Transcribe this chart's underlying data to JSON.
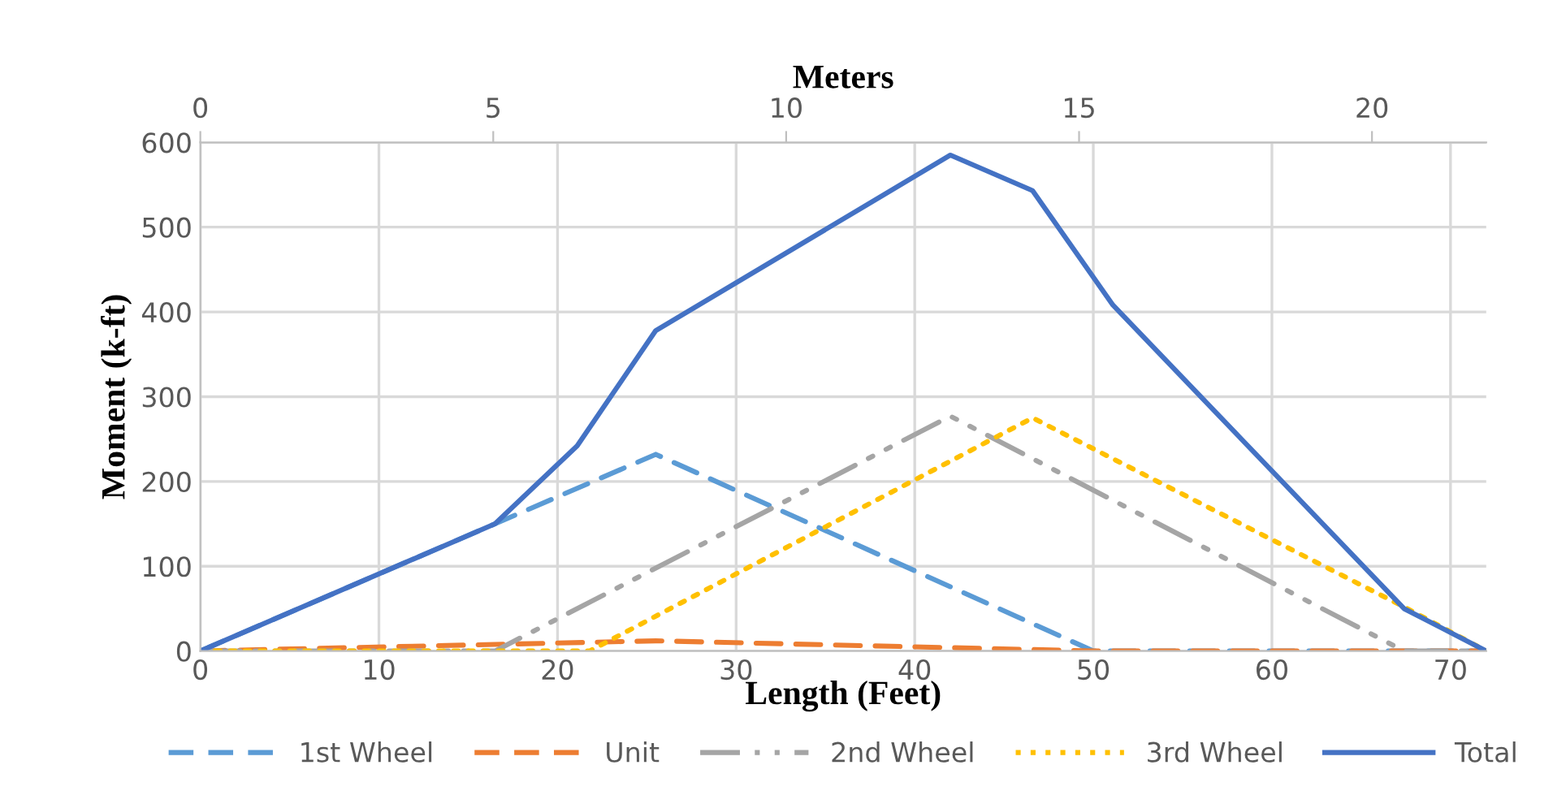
{
  "chart_data": {
    "type": "line",
    "xlabel": "Length (Feet)",
    "ylabel": "Moment (k-ft)",
    "x2label": "Meters",
    "xlim": [
      0,
      72
    ],
    "xticks": [
      0,
      10,
      20,
      30,
      40,
      50,
      60,
      70
    ],
    "ylim": [
      0,
      600
    ],
    "yticks": [
      0,
      100,
      200,
      300,
      400,
      500,
      600
    ],
    "x2lim": [
      0,
      21.95
    ],
    "x2ticks": [
      0,
      5,
      10,
      15,
      20
    ],
    "grid": true,
    "legend": "bottom",
    "series": [
      {
        "name": "1st Wheel",
        "color": "#5b9bd5",
        "line_style": "dashed",
        "x": [
          0,
          16.5,
          25.5,
          50,
          72
        ],
        "values": [
          0,
          150,
          232,
          0,
          0
        ]
      },
      {
        "name": "Unit",
        "color": "#ed7d31",
        "line_style": "dashed",
        "x": [
          0,
          25.5,
          50,
          72
        ],
        "values": [
          0,
          12,
          0,
          0
        ]
      },
      {
        "name": "2nd Wheel",
        "color": "#a5a5a5",
        "line_style": "dashdot",
        "x": [
          0,
          16.5,
          42,
          67.4,
          72
        ],
        "values": [
          0,
          0,
          277,
          0,
          0
        ]
      },
      {
        "name": "3rd Wheel",
        "color": "#ffc000",
        "line_style": "dotted",
        "x": [
          0,
          21.8,
          46.6,
          67.4,
          72
        ],
        "values": [
          0,
          0,
          275,
          52,
          0
        ]
      },
      {
        "name": "Total",
        "color": "#4472c4",
        "line_style": "solid",
        "x": [
          0,
          16.5,
          21.1,
          25.5,
          42,
          46.6,
          51.1,
          67.4,
          72
        ],
        "values": [
          0,
          150,
          242,
          378,
          585,
          543,
          408,
          50,
          0
        ]
      }
    ]
  }
}
